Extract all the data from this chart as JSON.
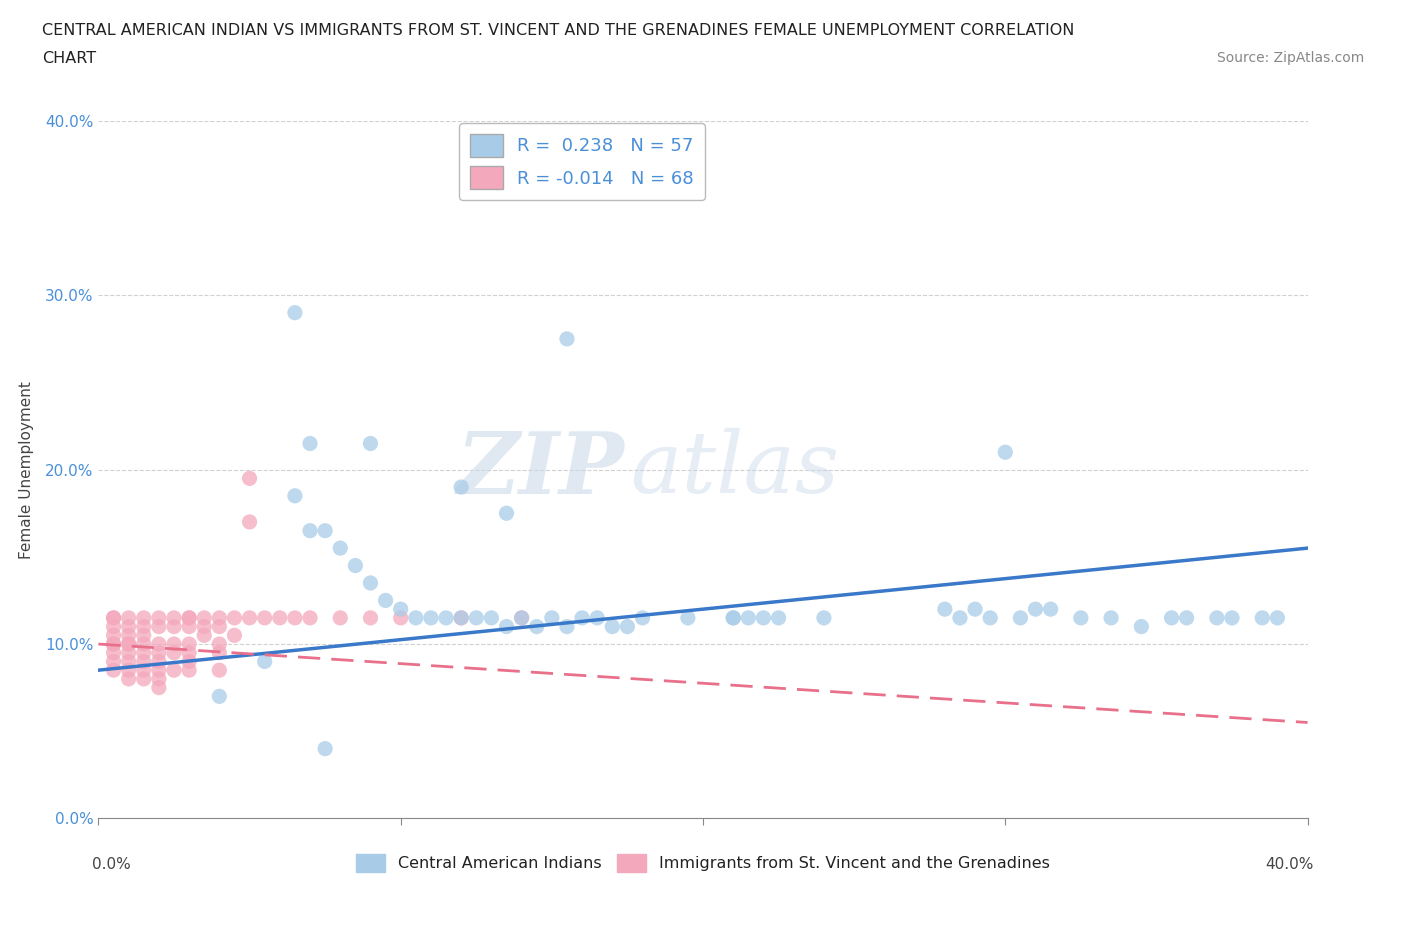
{
  "title_line1": "CENTRAL AMERICAN INDIAN VS IMMIGRANTS FROM ST. VINCENT AND THE GRENADINES FEMALE UNEMPLOYMENT CORRELATION",
  "title_line2": "CHART",
  "source_text": "Source: ZipAtlas.com",
  "ylabel": "Female Unemployment",
  "xlim": [
    0.0,
    0.4
  ],
  "ylim": [
    0.0,
    0.4
  ],
  "x_ticks": [
    0.0,
    0.1,
    0.2,
    0.3,
    0.4
  ],
  "y_ticks": [
    0.0,
    0.1,
    0.2,
    0.3,
    0.4
  ],
  "x_tick_labels": [
    "0.0%",
    "10.0%",
    "20.0%",
    "30.0%",
    "40.0%"
  ],
  "y_tick_labels": [
    "0.0%",
    "10.0%",
    "20.0%",
    "30.0%",
    "40.0%"
  ],
  "watermark_zip": "ZIP",
  "watermark_atlas": "atlas",
  "blue_color": "#a8cce8",
  "pink_color": "#f4a8bc",
  "blue_line_color": "#3a78c9",
  "pink_line_color": "#e8708a",
  "legend_label_blue": "Central American Indians",
  "legend_label_pink": "Immigrants from St. Vincent and the Grenadines",
  "background_color": "#ffffff",
  "grid_color": "#cccccc",
  "blue_scatter_x": [
    0.155,
    0.09,
    0.12,
    0.135,
    0.065,
    0.07,
    0.075,
    0.08,
    0.085,
    0.09,
    0.095,
    0.1,
    0.105,
    0.11,
    0.115,
    0.12,
    0.125,
    0.13,
    0.135,
    0.14,
    0.145,
    0.15,
    0.155,
    0.16,
    0.165,
    0.17,
    0.175,
    0.18,
    0.195,
    0.21,
    0.215,
    0.225,
    0.24,
    0.285,
    0.295,
    0.305,
    0.31,
    0.315,
    0.325,
    0.335,
    0.345,
    0.355,
    0.36,
    0.37,
    0.375,
    0.385,
    0.39,
    0.28,
    0.29,
    0.3,
    0.22,
    0.21,
    0.065,
    0.07,
    0.055,
    0.04,
    0.075
  ],
  "blue_scatter_y": [
    0.275,
    0.215,
    0.19,
    0.175,
    0.185,
    0.165,
    0.165,
    0.155,
    0.145,
    0.135,
    0.125,
    0.12,
    0.115,
    0.115,
    0.115,
    0.115,
    0.115,
    0.115,
    0.11,
    0.115,
    0.11,
    0.115,
    0.11,
    0.115,
    0.115,
    0.11,
    0.11,
    0.115,
    0.115,
    0.115,
    0.115,
    0.115,
    0.115,
    0.115,
    0.115,
    0.115,
    0.12,
    0.12,
    0.115,
    0.115,
    0.11,
    0.115,
    0.115,
    0.115,
    0.115,
    0.115,
    0.115,
    0.12,
    0.12,
    0.21,
    0.115,
    0.115,
    0.29,
    0.215,
    0.09,
    0.07,
    0.04
  ],
  "pink_scatter_x": [
    0.005,
    0.005,
    0.005,
    0.005,
    0.005,
    0.005,
    0.005,
    0.005,
    0.005,
    0.01,
    0.01,
    0.01,
    0.01,
    0.01,
    0.01,
    0.01,
    0.01,
    0.01,
    0.015,
    0.015,
    0.015,
    0.015,
    0.015,
    0.015,
    0.015,
    0.015,
    0.02,
    0.02,
    0.02,
    0.02,
    0.02,
    0.02,
    0.02,
    0.02,
    0.025,
    0.025,
    0.025,
    0.025,
    0.025,
    0.03,
    0.03,
    0.03,
    0.03,
    0.03,
    0.03,
    0.03,
    0.035,
    0.035,
    0.035,
    0.04,
    0.04,
    0.04,
    0.04,
    0.04,
    0.045,
    0.045,
    0.05,
    0.05,
    0.05,
    0.055,
    0.06,
    0.065,
    0.07,
    0.08,
    0.09,
    0.1,
    0.12,
    0.14
  ],
  "pink_scatter_y": [
    0.115,
    0.115,
    0.11,
    0.105,
    0.1,
    0.1,
    0.095,
    0.09,
    0.085,
    0.115,
    0.11,
    0.105,
    0.1,
    0.1,
    0.095,
    0.09,
    0.085,
    0.08,
    0.115,
    0.11,
    0.105,
    0.1,
    0.095,
    0.09,
    0.085,
    0.08,
    0.115,
    0.11,
    0.1,
    0.095,
    0.09,
    0.085,
    0.08,
    0.075,
    0.115,
    0.11,
    0.1,
    0.095,
    0.085,
    0.115,
    0.115,
    0.11,
    0.1,
    0.095,
    0.09,
    0.085,
    0.115,
    0.11,
    0.105,
    0.115,
    0.11,
    0.1,
    0.095,
    0.085,
    0.115,
    0.105,
    0.195,
    0.17,
    0.115,
    0.115,
    0.115,
    0.115,
    0.115,
    0.115,
    0.115,
    0.115,
    0.115,
    0.115
  ]
}
